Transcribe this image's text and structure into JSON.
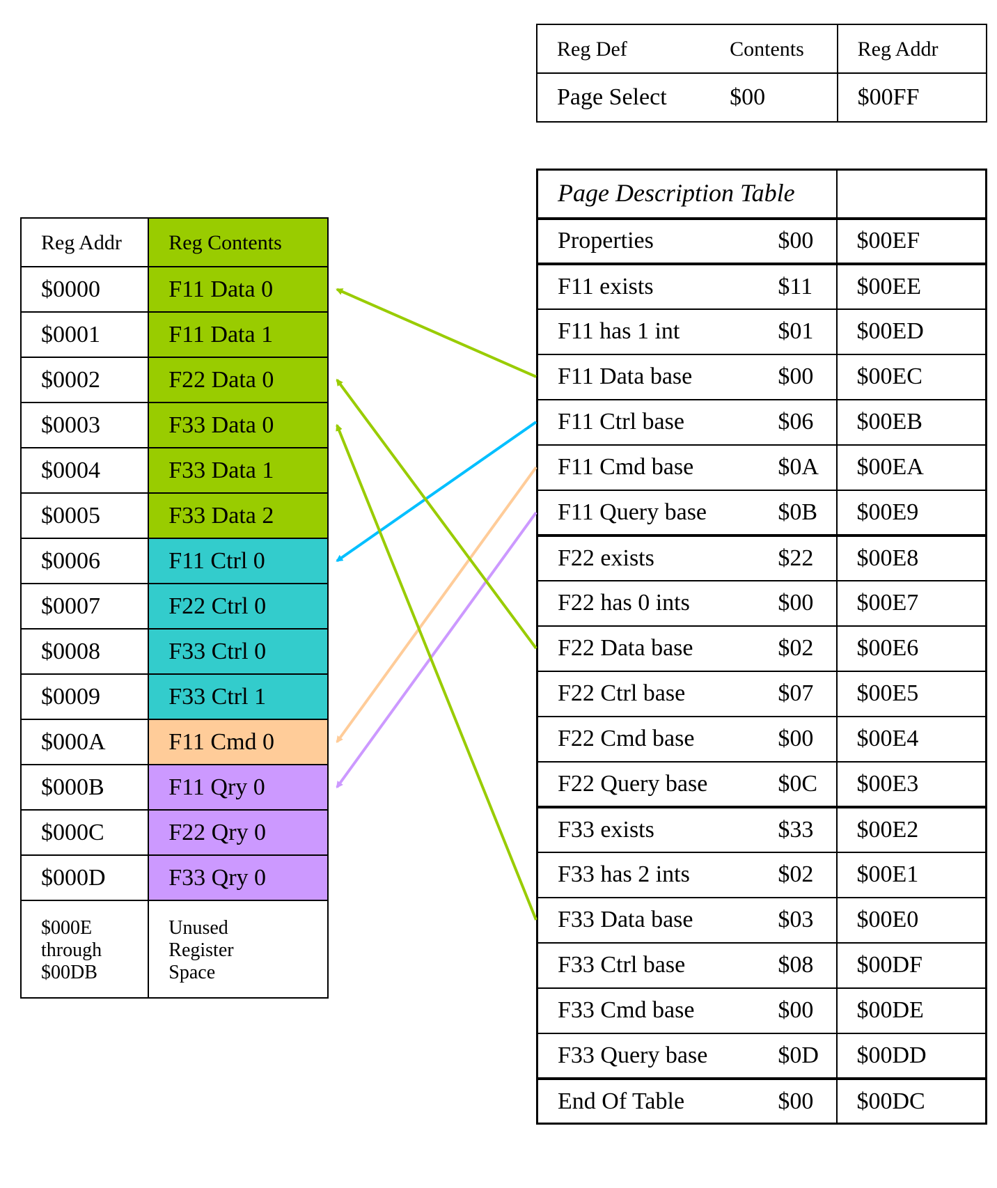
{
  "page_select": {
    "headers": [
      "Reg Def",
      "Contents",
      "Reg Addr"
    ],
    "row": [
      "Page Select",
      "$00",
      "$00FF"
    ]
  },
  "page_description_table": {
    "title": "Page Description Table",
    "rows": [
      [
        "Properties",
        "$00",
        "$00EF"
      ],
      [
        "F11 exists",
        "$11",
        "$00EE"
      ],
      [
        "F11 has 1 int",
        "$01",
        "$00ED"
      ],
      [
        "F11 Data base",
        "$00",
        "$00EC"
      ],
      [
        "F11 Ctrl base",
        "$06",
        "$00EB"
      ],
      [
        "F11 Cmd base",
        "$0A",
        "$00EA"
      ],
      [
        "F11 Query base",
        "$0B",
        "$00E9"
      ],
      [
        "F22 exists",
        "$22",
        "$00E8"
      ],
      [
        "F22 has 0 ints",
        "$00",
        "$00E7"
      ],
      [
        "F22 Data base",
        "$02",
        "$00E6"
      ],
      [
        "F22 Ctrl base",
        "$07",
        "$00E5"
      ],
      [
        "F22 Cmd base",
        "$00",
        "$00E4"
      ],
      [
        "F22 Query base",
        "$0C",
        "$00E3"
      ],
      [
        "F33 exists",
        "$33",
        "$00E2"
      ],
      [
        "F33 has 2 ints",
        "$02",
        "$00E1"
      ],
      [
        "F33 Data base",
        "$03",
        "$00E0"
      ],
      [
        "F33 Ctrl base",
        "$08",
        "$00DF"
      ],
      [
        "F33 Cmd base",
        "$00",
        "$00DE"
      ],
      [
        "F33 Query base",
        "$0D",
        "$00DD"
      ],
      [
        "End Of Table",
        "$00",
        "$00DC"
      ]
    ]
  },
  "register_map": {
    "headers": [
      "Reg Addr",
      "Reg Contents"
    ],
    "rows": [
      [
        "$0000",
        "F11 Data 0"
      ],
      [
        "$0001",
        "F11 Data 1"
      ],
      [
        "$0002",
        "F22 Data 0"
      ],
      [
        "$0003",
        "F33 Data 0"
      ],
      [
        "$0004",
        "F33 Data 1"
      ],
      [
        "$0005",
        "F33 Data 2"
      ],
      [
        "$0006",
        "F11 Ctrl 0"
      ],
      [
        "$0007",
        "F22 Ctrl 0"
      ],
      [
        "$0008",
        "F33 Ctrl 0"
      ],
      [
        "$0009",
        "F33 Ctrl 1"
      ],
      [
        "$000A",
        "F11 Cmd 0"
      ],
      [
        "$000B",
        "F11 Qry 0"
      ],
      [
        "$000C",
        "F22 Qry 0"
      ],
      [
        "$000D",
        "F33 Qry 0"
      ]
    ],
    "unused_addr": [
      "$000E",
      "through",
      "$00DB"
    ],
    "unused_label": [
      "Unused",
      "Register",
      "Space"
    ]
  },
  "colors": {
    "data": "#99cc00",
    "ctrl": "#33cccc",
    "cmd": "#ffcc99",
    "qry": "#cc99ff",
    "arrow_data": "#99cc00",
    "arrow_ctrl": "#00bfff",
    "arrow_cmd": "#ffcc99",
    "arrow_qry": "#cc99ff"
  },
  "arrows": [
    {
      "from": "F11 Data base",
      "to": "$0000",
      "color": "arrow_data"
    },
    {
      "from": "F11 Ctrl base",
      "to": "$0006",
      "color": "arrow_ctrl"
    },
    {
      "from": "F11 Cmd base",
      "to": "$000A",
      "color": "arrow_cmd"
    },
    {
      "from": "F11 Query base",
      "to": "$000B",
      "color": "arrow_qry"
    },
    {
      "from": "F22 Data base",
      "to": "$0002",
      "color": "arrow_data"
    },
    {
      "from": "F33 Data base",
      "to": "$0003",
      "color": "arrow_data"
    }
  ]
}
